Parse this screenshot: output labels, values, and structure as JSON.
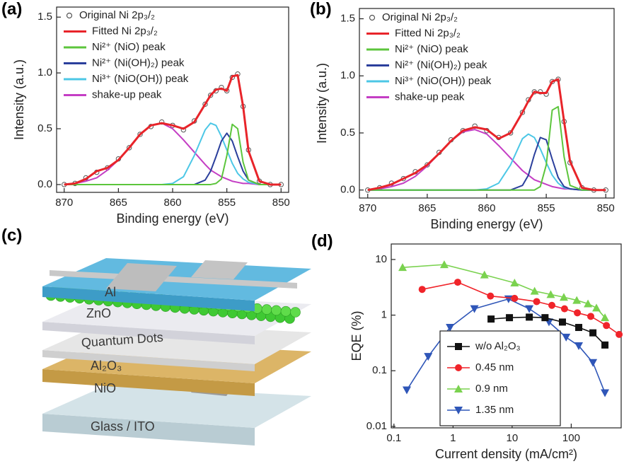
{
  "panel_labels": [
    "(a)",
    "(b)",
    "(c)",
    "(d)"
  ],
  "diagram": {
    "layers": [
      "Al",
      "ZnO",
      "Quantum Dots",
      "Al₂O₃",
      "NiO",
      "Glass / ITO"
    ]
  },
  "chart_data": [
    {
      "type": "line",
      "xlabel": "Binding energy (eV)",
      "ylabel": "Intensity (a.u.)",
      "xlim": [
        870.7,
        849.3
      ],
      "ylim": [
        -0.07,
        1.59
      ],
      "xticks": [
        870,
        865,
        860,
        855,
        850
      ],
      "yticks": [
        {
          "value": 0,
          "label": "0.0"
        },
        {
          "value": 0.5,
          "label": "0.5"
        },
        {
          "value": 1,
          "label": "1.0"
        },
        {
          "value": 1.5,
          "label": "1.5"
        }
      ],
      "legend": "upper left",
      "x": [
        870,
        869,
        868,
        867,
        866,
        865,
        864,
        863,
        862,
        861,
        860,
        859,
        858,
        857,
        856.5,
        856,
        855.5,
        855,
        854.5,
        854,
        853.5,
        853,
        852,
        851,
        850
      ],
      "series": [
        {
          "name": "Original Ni 2p₃/₂",
          "color": "#555555",
          "style": "markers",
          "values": [
            0.0,
            0.01,
            0.06,
            0.11,
            0.15,
            0.23,
            0.33,
            0.45,
            0.52,
            0.56,
            0.53,
            0.49,
            0.57,
            0.72,
            0.8,
            0.84,
            0.87,
            0.84,
            0.96,
            0.99,
            0.7,
            0.31,
            0.03,
            0.0,
            0.0
          ]
        },
        {
          "name": "Fitted Ni 2p₃/₂",
          "color": "#e8242a",
          "style": "line",
          "values": [
            0.0,
            0.01,
            0.05,
            0.12,
            0.15,
            0.22,
            0.33,
            0.45,
            0.53,
            0.55,
            0.53,
            0.5,
            0.56,
            0.72,
            0.8,
            0.85,
            0.86,
            0.84,
            0.97,
            0.98,
            0.7,
            0.3,
            0.03,
            0.0,
            0.0
          ]
        },
        {
          "name": "Ni²⁺ (NiO) peak",
          "color": "#5cc53c",
          "style": "line",
          "values": [
            0,
            0,
            0,
            0,
            0,
            0,
            0,
            0,
            0,
            0,
            0,
            0,
            0,
            0,
            0,
            0.01,
            0.05,
            0.26,
            0.54,
            0.5,
            0.2,
            0.04,
            0,
            0,
            0
          ]
        },
        {
          "name": "Ni²⁺ (Ni(OH)₂) peak",
          "color": "#2b3f9c",
          "style": "line",
          "values": [
            0,
            0,
            0,
            0,
            0,
            0,
            0,
            0,
            0,
            0,
            0,
            0,
            0,
            0.04,
            0.12,
            0.25,
            0.39,
            0.46,
            0.39,
            0.25,
            0.12,
            0.04,
            0,
            0,
            0
          ]
        },
        {
          "name": "Ni³⁺ (NiO(OH)) peak",
          "color": "#4cc7e6",
          "style": "line",
          "values": [
            0,
            0,
            0,
            0,
            0,
            0,
            0,
            0,
            0,
            0,
            0.01,
            0.07,
            0.26,
            0.49,
            0.55,
            0.53,
            0.43,
            0.31,
            0.19,
            0.1,
            0.05,
            0.02,
            0,
            0,
            0
          ]
        },
        {
          "name": "shake-up peak",
          "color": "#c43ec4",
          "style": "line",
          "values": [
            0.0,
            0.01,
            0.03,
            0.06,
            0.13,
            0.22,
            0.33,
            0.45,
            0.53,
            0.55,
            0.5,
            0.4,
            0.29,
            0.18,
            0.13,
            0.1,
            0.07,
            0.05,
            0.03,
            0.02,
            0.01,
            0.01,
            0,
            0,
            0
          ]
        }
      ]
    },
    {
      "type": "line",
      "xlabel": "Binding energy (eV)",
      "ylabel": "Intensity (a.u.)",
      "xlim": [
        870.7,
        849.3
      ],
      "ylim": [
        -0.07,
        1.59
      ],
      "xticks": [
        870,
        865,
        860,
        855,
        850
      ],
      "yticks": [
        {
          "value": 0,
          "label": "0.0"
        },
        {
          "value": 0.5,
          "label": "0.5"
        },
        {
          "value": 1,
          "label": "1.0"
        },
        {
          "value": 1.5,
          "label": "1.5"
        }
      ],
      "legend": "upper left",
      "x": [
        870,
        869,
        868,
        867,
        866,
        865,
        864,
        863,
        862,
        861,
        860,
        859,
        858,
        857,
        856.5,
        856,
        855.5,
        855,
        854.5,
        854,
        853.5,
        853,
        852,
        851,
        850
      ],
      "series": [
        {
          "name": "Original Ni 2p₃/₂",
          "color": "#555555",
          "style": "markers",
          "values": [
            0.0,
            0.02,
            0.06,
            0.1,
            0.16,
            0.22,
            0.33,
            0.44,
            0.52,
            0.56,
            0.52,
            0.46,
            0.5,
            0.68,
            0.79,
            0.86,
            0.86,
            0.84,
            0.95,
            0.97,
            0.6,
            0.24,
            0.02,
            0,
            0
          ]
        },
        {
          "name": "Fitted Ni 2p₃/₂",
          "color": "#e8242a",
          "style": "line",
          "values": [
            0.0,
            0.02,
            0.05,
            0.1,
            0.15,
            0.22,
            0.32,
            0.43,
            0.52,
            0.55,
            0.53,
            0.45,
            0.5,
            0.68,
            0.78,
            0.86,
            0.85,
            0.85,
            0.95,
            0.97,
            0.6,
            0.25,
            0.02,
            0,
            0
          ]
        },
        {
          "name": "Ni²⁺ (NiO) peak",
          "color": "#5cc53c",
          "style": "line",
          "values": [
            0,
            0,
            0,
            0,
            0,
            0,
            0,
            0,
            0,
            0,
            0,
            0,
            0,
            0,
            0,
            0,
            0.03,
            0.22,
            0.7,
            0.73,
            0.29,
            0.04,
            0,
            0,
            0
          ]
        },
        {
          "name": "Ni²⁺ (Ni(OH)₂) peak",
          "color": "#2b3f9c",
          "style": "line",
          "values": [
            0,
            0,
            0,
            0,
            0,
            0,
            0,
            0,
            0,
            0,
            0,
            0,
            0,
            0.04,
            0.13,
            0.31,
            0.46,
            0.44,
            0.27,
            0.11,
            0.03,
            0.01,
            0,
            0,
            0
          ]
        },
        {
          "name": "Ni³⁺ (NiO(OH)) peak",
          "color": "#4cc7e6",
          "style": "line",
          "values": [
            0,
            0,
            0,
            0,
            0,
            0,
            0,
            0,
            0,
            0,
            0.01,
            0.06,
            0.22,
            0.45,
            0.49,
            0.46,
            0.36,
            0.24,
            0.13,
            0.06,
            0.02,
            0.01,
            0,
            0,
            0
          ]
        },
        {
          "name": "shake-up peak",
          "color": "#c43ec4",
          "style": "line",
          "values": [
            0,
            0.01,
            0.03,
            0.06,
            0.12,
            0.21,
            0.32,
            0.43,
            0.51,
            0.53,
            0.49,
            0.39,
            0.28,
            0.17,
            0.13,
            0.09,
            0.07,
            0.05,
            0.03,
            0.02,
            0.01,
            0.01,
            0,
            0,
            0
          ]
        }
      ]
    },
    {
      "type": "line",
      "xlabel": "Current density (mA/cm²)",
      "ylabel": "EQE (%)",
      "xscale": "log",
      "yscale": "log",
      "xlim": [
        0.09,
        700
      ],
      "ylim": [
        0.0094,
        19
      ],
      "xticks": [
        0.1,
        1,
        10,
        100
      ],
      "yticks": [
        0.01,
        0.1,
        1,
        10
      ],
      "legend": "lower center",
      "series": [
        {
          "name": "w/o Al₂O₃",
          "color": "#111111",
          "marker": "square",
          "x": [
            4.4,
            9,
            19.5,
            36,
            71,
            134,
            233,
            372
          ],
          "values": [
            0.85,
            0.9,
            0.92,
            0.9,
            0.75,
            0.6,
            0.48,
            0.29
          ]
        },
        {
          "name": "0.45 nm",
          "color": "#f0242a",
          "marker": "circle",
          "x": [
            0.3,
            1.2,
            4.3,
            11,
            26,
            47,
            77,
            127,
            214,
            394,
            646
          ],
          "values": [
            2.9,
            3.9,
            2.2,
            2.0,
            1.75,
            1.5,
            1.3,
            1.1,
            0.95,
            0.65,
            0.45
          ]
        },
        {
          "name": "0.9   nm",
          "color": "#7ad24f",
          "marker": "triangle-up",
          "x": [
            0.14,
            0.71,
            3.4,
            11,
            24,
            45,
            75,
            124,
            192,
            267,
            372
          ],
          "values": [
            7.2,
            8.1,
            5.3,
            3.8,
            2.7,
            2.35,
            2.1,
            1.85,
            1.6,
            1.35,
            0.9
          ]
        },
        {
          "name": "1.35 nm",
          "color": "#2f56b8",
          "marker": "triangle-down",
          "x": [
            0.165,
            0.38,
            0.89,
            2.3,
            8.7,
            19.5,
            42,
            82,
            134,
            233,
            372
          ],
          "values": [
            0.045,
            0.18,
            0.6,
            1.3,
            1.95,
            1.3,
            0.75,
            0.4,
            0.28,
            0.14,
            0.04
          ]
        }
      ]
    }
  ]
}
